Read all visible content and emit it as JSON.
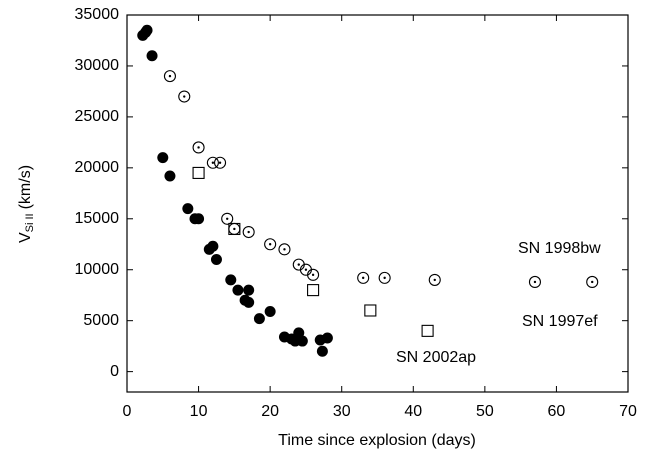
{
  "chart_data": {
    "type": "scatter",
    "x_label": "Time since explosion (days)",
    "y_label": {
      "main": "V",
      "sub": "Si II",
      "unit": "(km/s)"
    },
    "xlim": [
      0,
      70
    ],
    "xticks": [
      0,
      10,
      20,
      30,
      40,
      50,
      60,
      70
    ],
    "ylim": [
      -2000,
      35000
    ],
    "yticks": [
      0,
      5000,
      10000,
      15000,
      20000,
      25000,
      30000,
      35000
    ],
    "grid": false,
    "series": [
      {
        "name": "SN 2002ap",
        "marker": "filled-circle",
        "color": "#000000",
        "x": [
          2.2,
          2.6,
          2.8,
          3.5,
          5,
          6,
          8.5,
          9.5,
          10,
          11.5,
          12,
          12.5,
          14.5,
          15.5,
          16.5,
          17,
          17,
          18.5,
          20,
          22,
          23,
          23.5,
          24,
          24.5,
          27,
          27.3,
          28
        ],
        "values": [
          33000,
          33300,
          33500,
          31000,
          21000,
          19200,
          16000,
          15000,
          15000,
          12000,
          12300,
          11000,
          9000,
          8000,
          7000,
          8000,
          6800,
          5200,
          5900,
          3400,
          3200,
          3000,
          3800,
          3000,
          3100,
          2000,
          3300
        ]
      },
      {
        "name": "SN 1998bw",
        "marker": "dotted-circle",
        "color": "#000000",
        "x": [
          6,
          8,
          10,
          12,
          13,
          14,
          15,
          17,
          20,
          22,
          24,
          25,
          26,
          33,
          36,
          43,
          57,
          65
        ],
        "values": [
          29000,
          27000,
          22000,
          20500,
          20500,
          15000,
          14000,
          13700,
          12500,
          12000,
          10500,
          10000,
          9500,
          9200,
          9200,
          9000,
          8800,
          8800
        ]
      },
      {
        "name": "SN 1997ef",
        "marker": "square",
        "color": "#000000",
        "x": [
          10,
          15,
          26,
          34,
          42
        ],
        "values": [
          19500,
          14000,
          8000,
          6000,
          4000
        ]
      }
    ]
  }
}
